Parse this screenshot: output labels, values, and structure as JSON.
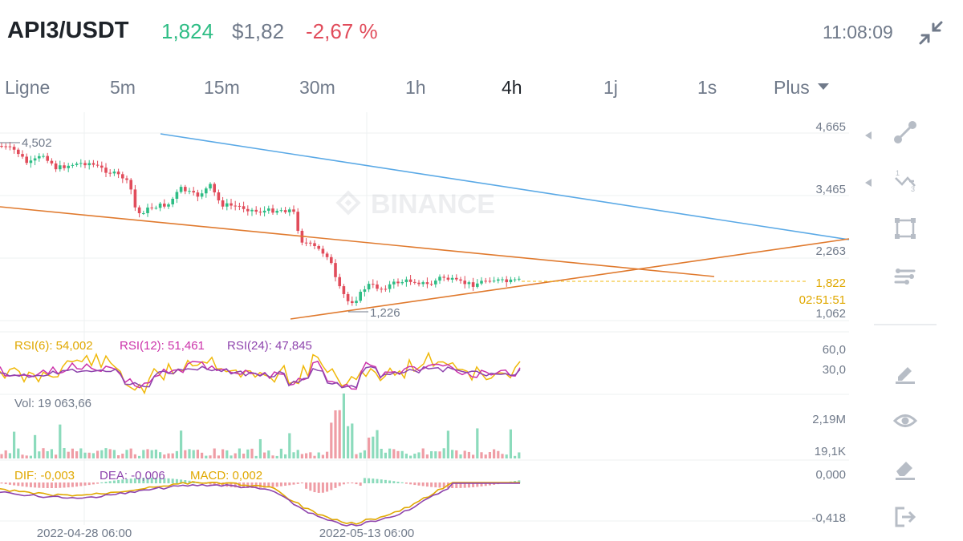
{
  "header": {
    "symbol": "API3/USDT",
    "last_price": "1,824",
    "usd_price": "$1,82",
    "change_pct": "-2,67 %",
    "time": "11:08:09"
  },
  "tabs": [
    {
      "label": "Ligne"
    },
    {
      "label": "5m"
    },
    {
      "label": "15m"
    },
    {
      "label": "30m"
    },
    {
      "label": "1h"
    },
    {
      "label": "4h",
      "active": true
    },
    {
      "label": "1j"
    },
    {
      "label": "1s"
    }
  ],
  "more_label": "Plus",
  "main_chart": {
    "watermark": "BINANCE",
    "y_ticks": [
      "4,665",
      "3,465",
      "2,263",
      "1,062"
    ],
    "high_label": "4,502",
    "low_label": "1,226",
    "current_price": "1,822",
    "countdown": "02:51:51"
  },
  "rsi": {
    "rsi6": "RSI(6): 54,002",
    "rsi12": "RSI(12): 51,461",
    "rsi24": "RSI(24): 47,845",
    "y_ticks": [
      "60,0",
      "30,0"
    ]
  },
  "volume": {
    "label": "Vol: 19 063,66",
    "y_ticks": [
      "2,19M",
      "19,1K"
    ]
  },
  "macd": {
    "dif": "DIF: -0,003",
    "dea": "DEA: -0,006",
    "macd": "MACD: 0,002",
    "y_ticks": [
      "0,000",
      "-0,418"
    ]
  },
  "x_axis": [
    "2022-04-28 06:00",
    "2022-05-13 06:00"
  ],
  "colors": {
    "up": "#2ebd85",
    "down": "#e14c5b",
    "rsi6": "#f0b90b",
    "rsi12": "#cc33aa",
    "rsi24": "#8e44ad",
    "trend_blue": "#5aa9e6",
    "trend_orange": "#e07a2e"
  },
  "tools": [
    "line-tool-icon",
    "fib-tool-icon",
    "rectangle-tool-icon",
    "indicator-settings-icon",
    "pencil-icon",
    "eye-icon",
    "eraser-icon",
    "exit-icon"
  ]
}
